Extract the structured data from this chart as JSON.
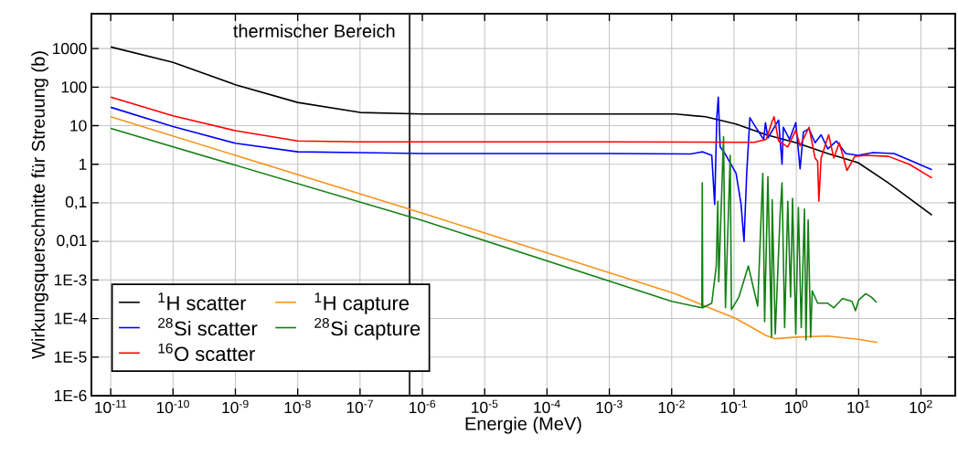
{
  "chart_data": {
    "type": "line",
    "xlabel": "Energie (MeV)",
    "ylabel": "Wirkungsquerschnitte für Streuung (b)",
    "log": "xy",
    "grid": true,
    "legend": "bottom left",
    "line_style": "solid",
    "xlim": [
      4.9e-12,
      355
    ],
    "ylim": [
      1e-06,
      8000
    ],
    "xticks": [
      {
        "value": 1e-11,
        "label": "10$^{-11}$"
      },
      {
        "value": 1e-10,
        "label": "10$^{-10}$"
      },
      {
        "value": 1e-09,
        "label": "10$^{-9}$"
      },
      {
        "value": 1e-08,
        "label": "10$^{-8}$"
      },
      {
        "value": 1e-07,
        "label": "10$^{-7}$"
      },
      {
        "value": 1e-06,
        "label": "10$^{-6}$"
      },
      {
        "value": 1e-05,
        "label": "10$^{-5}$"
      },
      {
        "value": 0.0001,
        "label": "10$^{-4}$"
      },
      {
        "value": 0.001,
        "label": "10$^{-3}$"
      },
      {
        "value": 0.01,
        "label": "10$^{-2}$"
      },
      {
        "value": 0.1,
        "label": "10$^{-1}$"
      },
      {
        "value": 1,
        "label": "10$^{0}$"
      },
      {
        "value": 10,
        "label": "10$^{1}$"
      },
      {
        "value": 100,
        "label": "10$^{2}$"
      }
    ],
    "yticks": [
      {
        "value": 1e-06,
        "label": "1E-6"
      },
      {
        "value": 1e-05,
        "label": "1E-5"
      },
      {
        "value": 0.0001,
        "label": "1E-4"
      },
      {
        "value": 0.001,
        "label": "1E-3"
      },
      {
        "value": 0.01,
        "label": "0,01"
      },
      {
        "value": 0.1,
        "label": "0,1"
      },
      1,
      10,
      100,
      1000
    ],
    "ref_lines": [
      {
        "axis": "x",
        "value": 6.25e-07,
        "label": "thermischer Bereich",
        "color": "#333333"
      }
    ],
    "series": [
      {
        "name": "$^{1}$H scatter",
        "color": "#000000",
        "x": [
          1e-11,
          1e-10,
          1e-09,
          1e-08,
          1e-07,
          1e-06,
          1e-05,
          0.0001,
          0.001,
          0.0115,
          0.035,
          0.108,
          0.33,
          1.0,
          3.2,
          9.8,
          30,
          150
        ],
        "values": [
          1100,
          440,
          115,
          40,
          22,
          20,
          20,
          20,
          20,
          20,
          17,
          11,
          5.8,
          3.6,
          1.9,
          1.1,
          0.33,
          0.048
        ]
      },
      {
        "name": "$^{1}$H capture",
        "color": "#f7941d",
        "x": [
          1e-11,
          1e-06,
          0.0115,
          0.04,
          0.107,
          0.33,
          0.46,
          1.0,
          3.2,
          9.8,
          20
        ],
        "values": [
          17,
          0.054,
          0.00044,
          0.00019,
          0.0001,
          3.6e-05,
          3e-05,
          3.3e-05,
          3.5e-05,
          2.9e-05,
          2.4e-05
        ]
      },
      {
        "name": "$^{28}$Si scatter",
        "color": "#0000ff",
        "x": [
          1e-11,
          1e-10,
          1e-09,
          1e-08,
          1e-07,
          1e-06,
          0.001,
          0.02,
          0.0316,
          0.044,
          0.049,
          0.053,
          0.056,
          0.06,
          0.069,
          0.108,
          0.13,
          0.145,
          0.16,
          0.18,
          0.24,
          0.3,
          0.32,
          0.35,
          0.52,
          0.59,
          0.62,
          0.78,
          0.98,
          1.15,
          1.3,
          1.6,
          2.0,
          2.5,
          3.2,
          4.4,
          6.2,
          9.7,
          17,
          37,
          73,
          150
        ],
        "values": [
          30,
          9.5,
          3.5,
          2.1,
          2.0,
          1.9,
          1.9,
          1.85,
          2.1,
          1.7,
          0.091,
          16,
          55,
          2.8,
          2.1,
          0.58,
          0.091,
          0.01,
          0.58,
          16,
          7.6,
          4.4,
          12,
          4.8,
          14,
          1.0,
          9.1,
          4.4,
          12,
          0.76,
          6.9,
          8.3,
          3.6,
          5.8,
          2.5,
          4.0,
          1.9,
          1.7,
          2.0,
          1.9,
          1.2,
          0.72
        ]
      },
      {
        "name": "$^{28}$Si capture",
        "color": "#138013",
        "x": [
          1e-11,
          1e-06,
          0.01,
          0.0305,
          0.031,
          0.0315,
          0.044,
          0.052,
          0.055,
          0.057,
          0.068,
          0.073,
          0.087,
          0.091,
          0.12,
          0.17,
          0.24,
          0.29,
          0.31,
          0.35,
          0.4,
          0.41,
          0.46,
          0.55,
          0.59,
          0.65,
          0.73,
          0.81,
          0.87,
          0.98,
          1.08,
          1.2,
          1.35,
          1.43,
          1.55,
          1.7,
          1.8,
          2.2,
          3.2,
          4.0,
          5.5,
          7.8,
          8.9,
          10,
          13,
          16,
          19.5
        ],
        "values": [
          8.5,
          0.035,
          0.00028,
          0.00019,
          0.33,
          0.00019,
          0.00025,
          0.0023,
          0.11,
          0.0009,
          5.2,
          0.00019,
          1.7,
          0.00017,
          0.00036,
          0.0023,
          0.00021,
          0.58,
          8.3e-05,
          0.48,
          3.3e-05,
          0.12,
          4e-05,
          0.052,
          0.33,
          5.8e-05,
          0.11,
          0.00036,
          0.13,
          4e-05,
          0.076,
          5.8e-05,
          0.069,
          2.8e-05,
          0.036,
          3.3e-05,
          0.00052,
          0.00025,
          0.00025,
          0.00019,
          0.00033,
          0.00028,
          0.00016,
          0.0003,
          0.00044,
          0.00036,
          0.00026
        ]
      },
      {
        "name": "$^{16}$O scatter",
        "color": "#ff0000",
        "x": [
          1e-11,
          1e-10,
          1e-09,
          1e-08,
          1e-07,
          1e-06,
          0.001,
          0.21,
          0.33,
          0.41,
          0.44,
          0.52,
          0.73,
          0.98,
          1.15,
          1.6,
          2.0,
          2.2,
          2.3,
          2.5,
          3.3,
          4.0,
          4.9,
          6.5,
          8.7,
          13,
          30,
          65,
          150
        ],
        "values": [
          55,
          18,
          7.4,
          4.0,
          3.8,
          3.8,
          3.8,
          3.7,
          4.4,
          13,
          17,
          4.0,
          2.8,
          7.6,
          3.0,
          9.1,
          1.45,
          1.2,
          0.11,
          1.45,
          5.8,
          1.45,
          3.6,
          0.69,
          1.6,
          1.7,
          1.6,
          1.0,
          0.44
        ]
      }
    ]
  }
}
